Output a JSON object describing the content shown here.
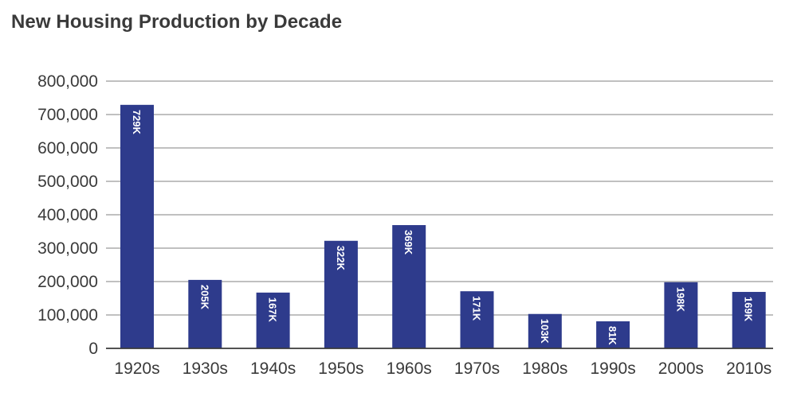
{
  "chart_data": {
    "type": "bar",
    "title": "New Housing Production by Decade",
    "xlabel": "",
    "ylabel": "",
    "categories": [
      "1920s",
      "1930s",
      "1940s",
      "1950s",
      "1960s",
      "1970s",
      "1980s",
      "1990s",
      "2000s",
      "2010s"
    ],
    "values": [
      729000,
      205000,
      167000,
      322000,
      369000,
      171000,
      103000,
      81000,
      198000,
      169000
    ],
    "data_labels": [
      "729K",
      "205K",
      "167K",
      "322K",
      "369K",
      "171K",
      "103K",
      "81K",
      "198K",
      "169K"
    ],
    "ylim": [
      0,
      800000
    ],
    "yticks": [
      0,
      100000,
      200000,
      300000,
      400000,
      500000,
      600000,
      700000,
      800000
    ],
    "ytick_labels": [
      "0",
      "100,000",
      "200,000",
      "300,000",
      "400,000",
      "500,000",
      "600,000",
      "700,000",
      "800,000"
    ],
    "grid": true,
    "legend": "none",
    "colors": {
      "bar": "#2e3b8c",
      "grid": "#9a9a9a",
      "axis": "#3a3a3a",
      "text": "#3a3a3a",
      "bar_label": "#ffffff"
    }
  }
}
